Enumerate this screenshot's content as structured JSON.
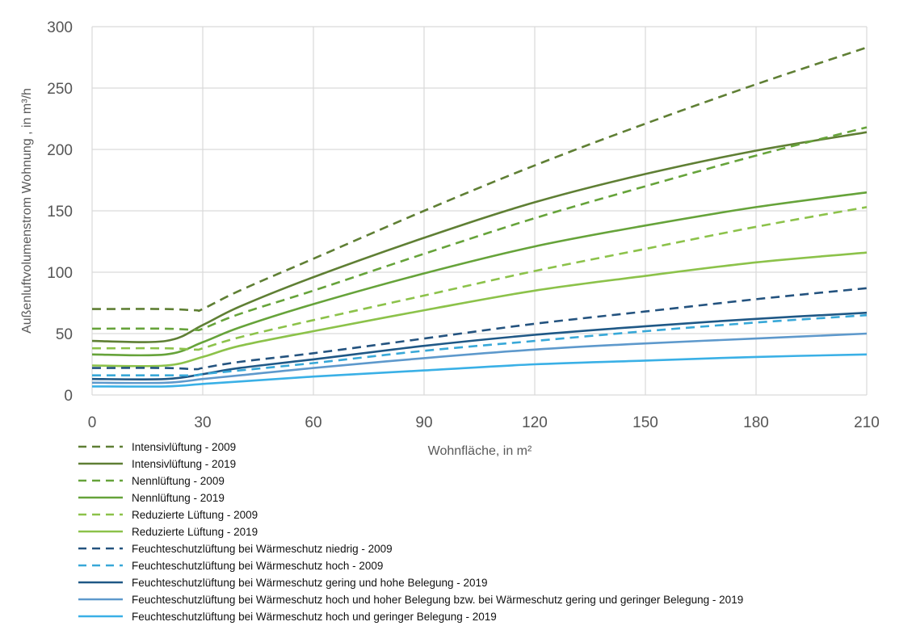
{
  "chart_data": {
    "type": "line",
    "title": "",
    "xlabel": "Wohnfläche, in m²",
    "ylabel": "Außenluftvolumenstrom Wohnung , in m³/h",
    "xlim": [
      0,
      210
    ],
    "ylim": [
      0,
      300
    ],
    "xticks": [
      "0",
      "30",
      "60",
      "90",
      "120",
      "150",
      "180",
      "210"
    ],
    "yticks": [
      "0",
      "50",
      "100",
      "150",
      "200",
      "250",
      "300"
    ],
    "grid": true,
    "legend_position": "bottom",
    "series": [
      {
        "name": "Intensivlüftung - 2009",
        "color": "#5f7f34",
        "dashed": true,
        "x": [
          0,
          20,
          28,
          30,
          40,
          60,
          90,
          120,
          150,
          180,
          210
        ],
        "y": [
          70,
          70,
          69,
          70,
          85,
          111,
          150,
          187,
          221,
          253,
          283
        ]
      },
      {
        "name": "Intensivlüftung - 2019",
        "color": "#5f7f34",
        "dashed": false,
        "x": [
          0,
          20,
          30,
          40,
          60,
          90,
          120,
          150,
          180,
          210
        ],
        "y": [
          44,
          44,
          57,
          72,
          96,
          128,
          157,
          180,
          199,
          214
        ]
      },
      {
        "name": "Nennlüftung - 2009",
        "color": "#66a33a",
        "dashed": true,
        "x": [
          0,
          20,
          28,
          30,
          40,
          60,
          90,
          120,
          150,
          180,
          210
        ],
        "y": [
          54,
          54,
          53,
          54,
          66,
          85,
          115,
          144,
          170,
          195,
          218
        ]
      },
      {
        "name": "Nennlüftung - 2019",
        "color": "#66a33a",
        "dashed": false,
        "x": [
          0,
          20,
          30,
          40,
          60,
          90,
          120,
          150,
          180,
          210
        ],
        "y": [
          33,
          33,
          43,
          55,
          74,
          99,
          121,
          138,
          153,
          165
        ]
      },
      {
        "name": "Reduzierte Lüftung - 2009",
        "color": "#8cc24a",
        "dashed": true,
        "x": [
          0,
          20,
          28,
          30,
          40,
          60,
          90,
          120,
          150,
          180,
          210
        ],
        "y": [
          38,
          38,
          37,
          38,
          47,
          61,
          81,
          101,
          119,
          137,
          153
        ]
      },
      {
        "name": "Reduzierte Lüftung - 2019",
        "color": "#8cc24a",
        "dashed": false,
        "x": [
          0,
          20,
          30,
          40,
          60,
          90,
          120,
          150,
          180,
          210
        ],
        "y": [
          24,
          24,
          31,
          40,
          52,
          69,
          85,
          97,
          108,
          116
        ]
      },
      {
        "name": "Feuchteschutzlüftung bei Wärmeschutz niedrig - 2009",
        "color": "#24537f",
        "dashed": true,
        "x": [
          0,
          20,
          28,
          30,
          40,
          60,
          90,
          120,
          150,
          180,
          210
        ],
        "y": [
          22,
          22,
          21,
          22,
          27,
          34,
          46,
          58,
          68,
          78,
          87
        ]
      },
      {
        "name": "Feuchteschutzlüftung bei Wärmeschutz hoch - 2009",
        "color": "#38a8d8",
        "dashed": true,
        "x": [
          0,
          20,
          28,
          30,
          40,
          60,
          90,
          120,
          150,
          180,
          210
        ],
        "y": [
          16,
          16,
          16,
          17,
          20,
          26,
          36,
          44,
          52,
          59,
          65
        ]
      },
      {
        "name": "Feuchteschutzlüftung bei Wärmeschutz gering und hohe Belegung - 2019",
        "color": "#1f5886",
        "dashed": false,
        "x": [
          0,
          20,
          30,
          40,
          60,
          90,
          120,
          150,
          180,
          210
        ],
        "y": [
          13,
          13,
          17,
          22,
          29,
          40,
          49,
          56,
          62,
          67
        ]
      },
      {
        "name": "Feuchteschutzlüftung bei Wärmeschutz hoch und hoher Belegung bzw. bei Wärmeschutz gering und geringer Belegung - 2019",
        "color": "#5e99cc",
        "dashed": false,
        "x": [
          0,
          20,
          30,
          40,
          60,
          90,
          120,
          150,
          180,
          210
        ],
        "y": [
          10,
          10,
          13,
          16,
          22,
          30,
          37,
          42,
          46,
          50
        ]
      },
      {
        "name": "Feuchteschutzlüftung bei Wärmeschutz hoch und geringer Belegung - 2019",
        "color": "#3ab0e6",
        "dashed": false,
        "x": [
          0,
          20,
          30,
          40,
          60,
          90,
          120,
          150,
          180,
          210
        ],
        "y": [
          7,
          7,
          9,
          11,
          15,
          20,
          25,
          28,
          31,
          33
        ]
      }
    ]
  }
}
